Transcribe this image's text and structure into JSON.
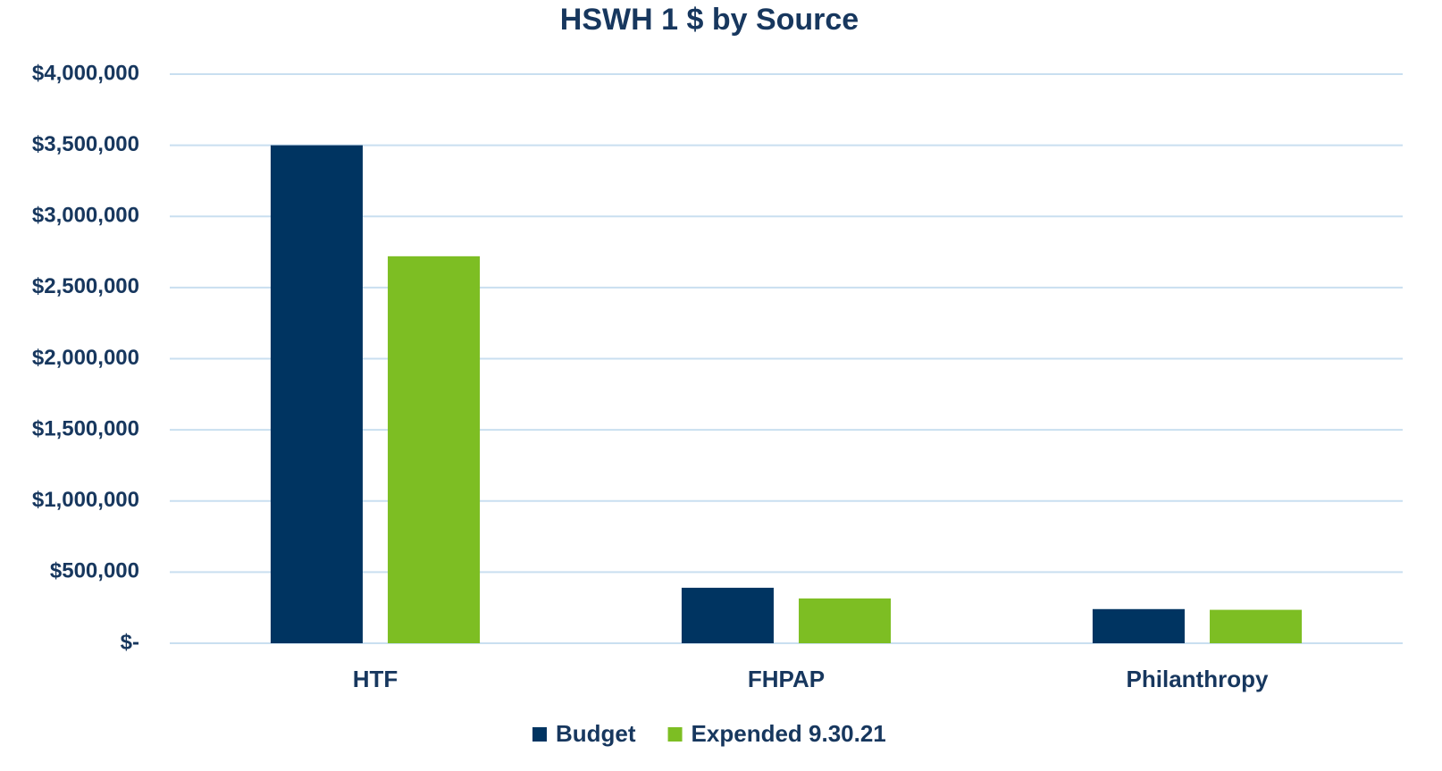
{
  "chart_data": {
    "type": "bar",
    "title": "HSWH 1 $ by Source",
    "categories": [
      "HTF",
      "FHPAP",
      "Philanthropy"
    ],
    "series": [
      {
        "name": "Budget",
        "color": "#003461",
        "values": [
          3500000,
          390000,
          240000
        ]
      },
      {
        "name": "Expended 9.30.21",
        "color": "#7dbe23",
        "values": [
          2720000,
          315000,
          235000
        ]
      }
    ],
    "ylim": [
      0,
      4000000
    ],
    "yticks": [
      {
        "value": 0,
        "label": "$-"
      },
      {
        "value": 500000,
        "label": "$500,000"
      },
      {
        "value": 1000000,
        "label": "$1,000,000"
      },
      {
        "value": 1500000,
        "label": "$1,500,000"
      },
      {
        "value": 2000000,
        "label": "$2,000,000"
      },
      {
        "value": 2500000,
        "label": "$2,500,000"
      },
      {
        "value": 3000000,
        "label": "$3,000,000"
      },
      {
        "value": 3500000,
        "label": "$3,500,000"
      },
      {
        "value": 4000000,
        "label": "$4,000,000"
      }
    ],
    "grid": true,
    "legend": "bottom"
  }
}
